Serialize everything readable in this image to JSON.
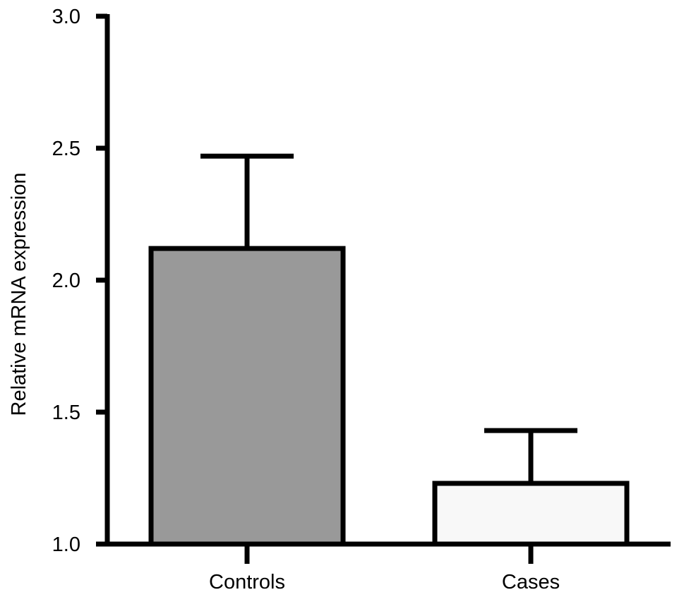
{
  "chart_data": {
    "type": "bar",
    "title": "",
    "xlabel": "",
    "ylabel": "Relative mRNA expression",
    "ylim": [
      1.0,
      3.0
    ],
    "yticks": [
      1.0,
      1.5,
      2.0,
      2.5,
      3.0
    ],
    "ytick_labels": [
      "1.0",
      "1.5",
      "2.0",
      "2.5",
      "3.0"
    ],
    "categories": [
      "Controls",
      "Cases"
    ],
    "values": [
      2.12,
      1.23
    ],
    "error_upper": [
      2.47,
      1.43
    ],
    "bar_colors": [
      "#999999",
      "#f8f8f8"
    ],
    "edge_color": "#000000",
    "grid": false,
    "legend": "none"
  }
}
